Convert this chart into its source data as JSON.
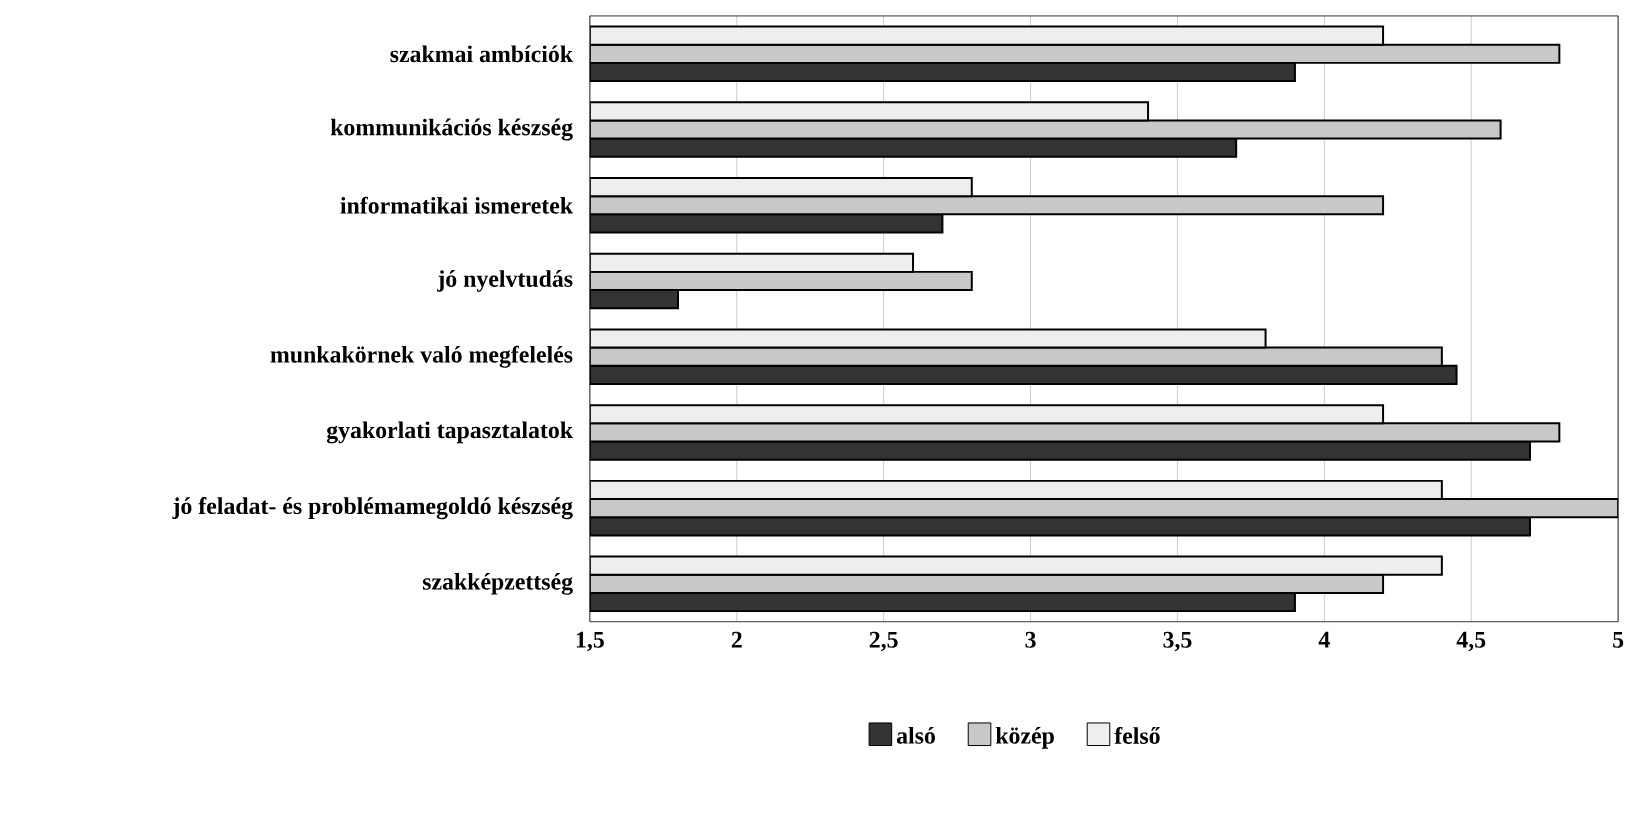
{
  "chart_data": {
    "type": "bar",
    "orientation": "horizontal",
    "categories": [
      "szakmai ambíciók",
      "kommunikációs készség",
      "informatikai ismeretek",
      "jó nyelvtudás",
      "munkakörnek való megfelelés",
      "gyakorlati tapasztalatok",
      "jó feladat- és problémamegoldó készség",
      "szakképzettség"
    ],
    "series": [
      {
        "name": "alsó",
        "color": "#333333",
        "values": [
          3.9,
          3.7,
          2.7,
          1.8,
          4.45,
          4.7,
          4.7,
          3.9
        ]
      },
      {
        "name": "közép",
        "color": "#c8c8c8",
        "values": [
          4.8,
          4.6,
          4.2,
          2.8,
          4.4,
          4.8,
          5.0,
          4.2
        ]
      },
      {
        "name": "felső",
        "color": "#eeeeee",
        "values": [
          4.2,
          3.4,
          2.8,
          2.6,
          3.8,
          4.2,
          4.4,
          4.4
        ]
      }
    ],
    "xlim": [
      1.5,
      5
    ],
    "xticks": [
      {
        "value": 1.5,
        "label": "1,5"
      },
      2,
      {
        "value": 2.5,
        "label": "2,5"
      },
      3,
      {
        "value": 3.5,
        "label": "3,5"
      },
      4,
      {
        "value": 4.5,
        "label": "4,5"
      },
      5
    ],
    "grid": "x",
    "legend": "bottom"
  }
}
